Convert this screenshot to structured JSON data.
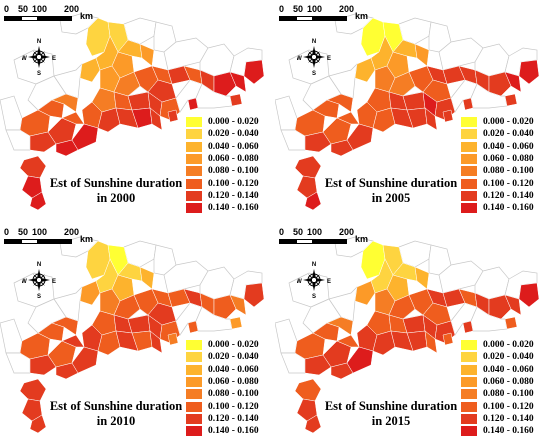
{
  "colors": {
    "class_1": "#ffff33",
    "class_2": "#fed440",
    "class_3": "#fdb32d",
    "class_4": "#fc9a28",
    "class_5": "#f57d24",
    "class_6": "#ef5d1e",
    "class_7": "#e33b1f",
    "class_8": "#dd1c1c",
    "boundary": "#c8c8c8",
    "outline": "#ffffff"
  },
  "legend": [
    {
      "label": "0.000 - 0.020",
      "color_key": "class_1"
    },
    {
      "label": "0.020 - 0.040",
      "color_key": "class_2"
    },
    {
      "label": "0.040 - 0.060",
      "color_key": "class_3"
    },
    {
      "label": "0.060 - 0.080",
      "color_key": "class_4"
    },
    {
      "label": "0.080 - 0.100",
      "color_key": "class_5"
    },
    {
      "label": "0.100 - 0.120",
      "color_key": "class_6"
    },
    {
      "label": "0.120 - 0.140",
      "color_key": "class_7"
    },
    {
      "label": "0.140 - 0.160",
      "color_key": "class_8"
    }
  ],
  "scale": {
    "ticks": [
      "0",
      "50",
      "100",
      "200"
    ],
    "unit": "km"
  },
  "compass": {
    "n": "N",
    "s": "S",
    "e": "E",
    "w": "W"
  },
  "panels": [
    {
      "title_line1": "Est of Sunshine duration",
      "title_line2": "in 2000"
    },
    {
      "title_line1": "Est of Sunshine duration",
      "title_line2": "in 2005"
    },
    {
      "title_line1": "Est of Sunshine duration",
      "title_line2": "in 2010"
    },
    {
      "title_line1": "Est of Sunshine duration",
      "title_line2": "in 2015"
    }
  ]
}
